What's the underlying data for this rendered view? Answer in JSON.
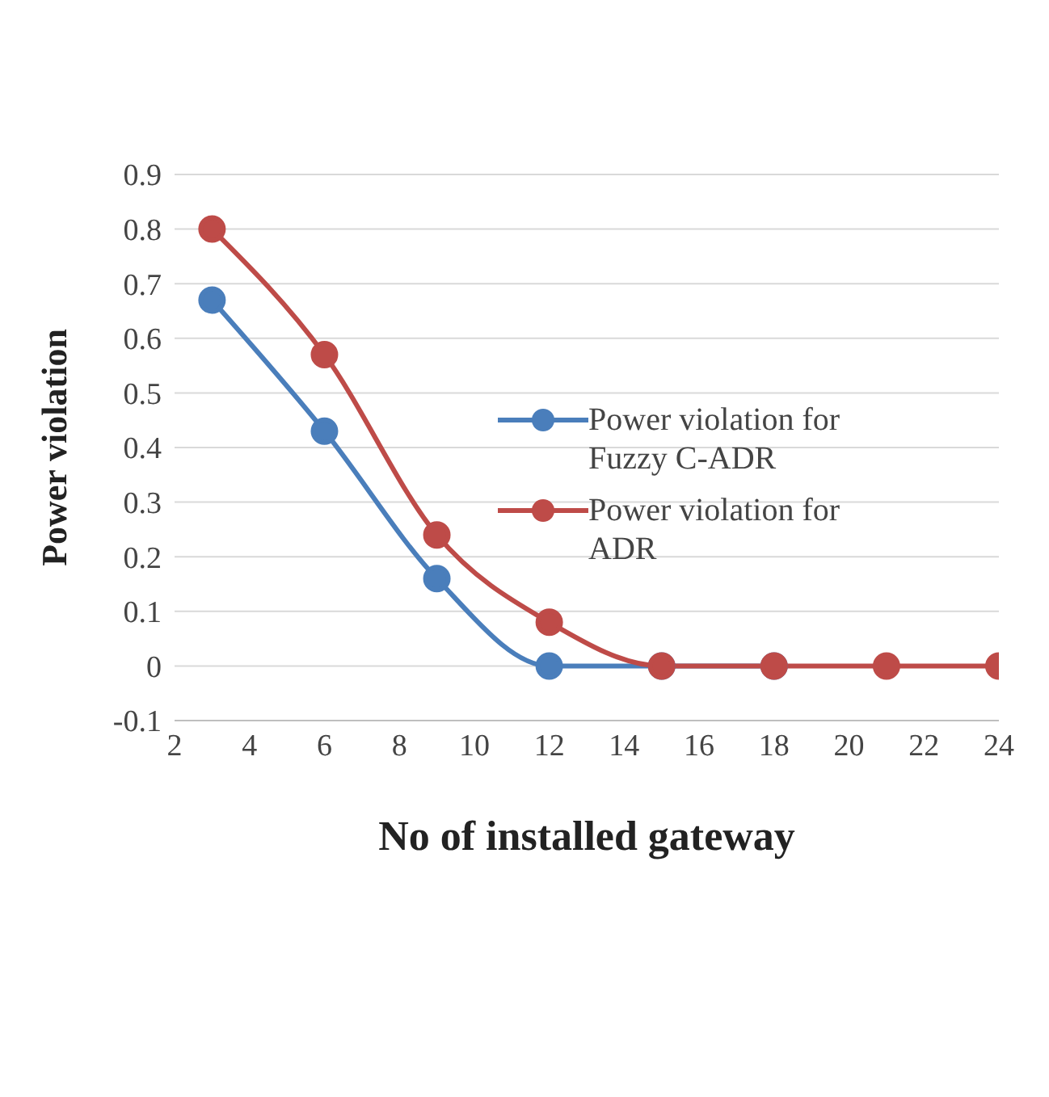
{
  "chart_data": {
    "type": "line",
    "xlabel": "No of installed gateway",
    "ylabel": "Power violation",
    "x": [
      3,
      6,
      9,
      12,
      15,
      18,
      21,
      24
    ],
    "series": [
      {
        "name": "Power violation for Fuzzy C-ADR",
        "color": "#4a7ebb",
        "values": [
          0.67,
          0.43,
          0.16,
          0,
          0,
          0,
          null,
          null
        ]
      },
      {
        "name": "Power violation for ADR",
        "color": "#be4b48",
        "values": [
          0.8,
          0.57,
          0.24,
          0.08,
          0,
          0,
          0,
          0
        ]
      }
    ],
    "xlim": [
      2,
      24
    ],
    "xticks": [
      2,
      4,
      6,
      8,
      10,
      12,
      14,
      16,
      18,
      20,
      22,
      24
    ],
    "ylim": [
      -0.1,
      0.9
    ],
    "yticks": [
      -0.1,
      0,
      0.1,
      0.2,
      0.3,
      0.4,
      0.5,
      0.6,
      0.7,
      0.8,
      0.9
    ],
    "grid": "y",
    "legend": "right",
    "marker": "circle",
    "line_style": "solid"
  }
}
